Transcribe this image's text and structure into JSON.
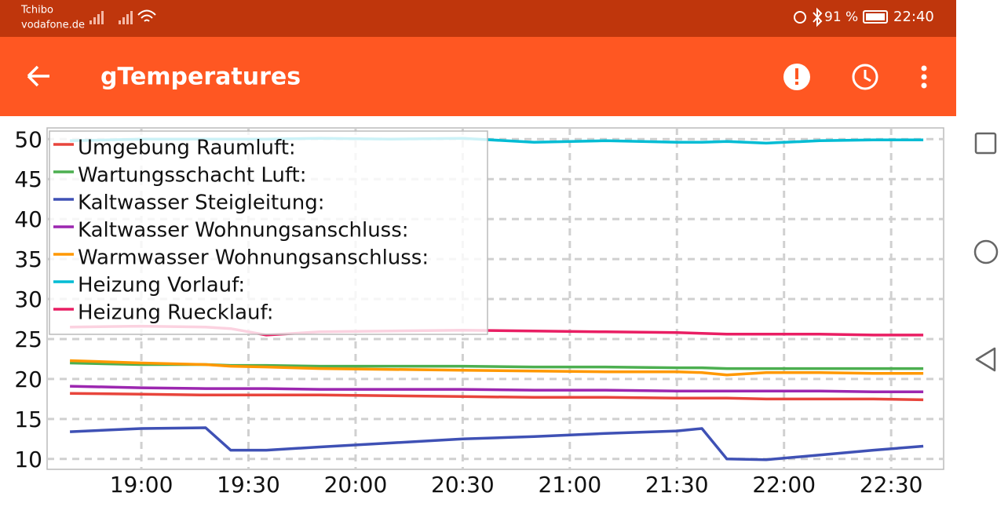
{
  "status_bar": {
    "carrier_1": "Tchibo",
    "carrier_2": "vodafone.de",
    "battery": "91 %",
    "time": "22:40"
  },
  "app_bar": {
    "title": "gTemperatures"
  },
  "chart_data": {
    "type": "line",
    "x": [
      1120,
      1140,
      1158,
      1165,
      1175,
      1190,
      1210,
      1230,
      1250,
      1270,
      1290,
      1297,
      1304,
      1315,
      1330,
      1345,
      1359
    ],
    "xlim": [
      1113.6,
      1364.7
    ],
    "xticks": [
      {
        "value": 1140,
        "label": "19:00"
      },
      {
        "value": 1170,
        "label": "19:30"
      },
      {
        "value": 1200,
        "label": "20:00"
      },
      {
        "value": 1230,
        "label": "20:30"
      },
      {
        "value": 1260,
        "label": "21:00"
      },
      {
        "value": 1290,
        "label": "21:30"
      },
      {
        "value": 1320,
        "label": "22:00"
      },
      {
        "value": 1350,
        "label": "22:30"
      }
    ],
    "ylim": [
      8.7,
      51.4
    ],
    "yticks": [
      10,
      15,
      20,
      25,
      30,
      35,
      40,
      45,
      50
    ],
    "grid": true,
    "legend": "upper-left",
    "series": [
      {
        "name": "Umgebung Raumluft:",
        "color": "#e8453c",
        "values": [
          18.2,
          18.1,
          18.0,
          18.0,
          18.0,
          18.0,
          17.9,
          17.8,
          17.7,
          17.7,
          17.6,
          17.6,
          17.6,
          17.5,
          17.5,
          17.5,
          17.4
        ]
      },
      {
        "name": "Wartungsschacht Luft:",
        "color": "#4caf50",
        "values": [
          22.0,
          21.8,
          21.8,
          21.7,
          21.7,
          21.6,
          21.6,
          21.6,
          21.5,
          21.5,
          21.4,
          21.4,
          21.3,
          21.3,
          21.3,
          21.3,
          21.3
        ]
      },
      {
        "name": "Kaltwasser Steigleitung:",
        "color": "#3f51b5",
        "values": [
          13.4,
          13.8,
          13.9,
          11.1,
          11.1,
          11.5,
          12.0,
          12.5,
          12.8,
          13.2,
          13.5,
          13.8,
          10.0,
          9.9,
          10.5,
          11.1,
          11.6
        ]
      },
      {
        "name": "Kaltwasser Wohnungsanschluss:",
        "color": "#9c27b0",
        "values": [
          19.1,
          18.9,
          18.8,
          18.8,
          18.8,
          18.7,
          18.7,
          18.7,
          18.6,
          18.6,
          18.5,
          18.5,
          18.5,
          18.5,
          18.5,
          18.4,
          18.4
        ]
      },
      {
        "name": "Warmwasser Wohnungsanschluss:",
        "color": "#ff9800",
        "values": [
          22.3,
          22.0,
          21.8,
          21.6,
          21.5,
          21.3,
          21.2,
          21.1,
          21.0,
          20.9,
          20.9,
          20.8,
          20.5,
          20.8,
          20.8,
          20.7,
          20.7
        ]
      },
      {
        "name": "Heizung Vorlauf:",
        "color": "#00bcd4",
        "values": [
          49.8,
          50.0,
          50.0,
          50.0,
          50.0,
          50.1,
          50.0,
          50.1,
          49.6,
          49.8,
          49.6,
          49.6,
          49.7,
          49.5,
          49.8,
          49.9,
          49.9
        ]
      },
      {
        "name": "Heizung Ruecklauf:",
        "color": "#e91e63",
        "values": [
          26.5,
          26.6,
          26.5,
          26.3,
          25.5,
          25.9,
          26.0,
          26.1,
          26.0,
          25.9,
          25.8,
          25.7,
          25.6,
          25.6,
          25.6,
          25.5,
          25.5
        ]
      }
    ]
  }
}
